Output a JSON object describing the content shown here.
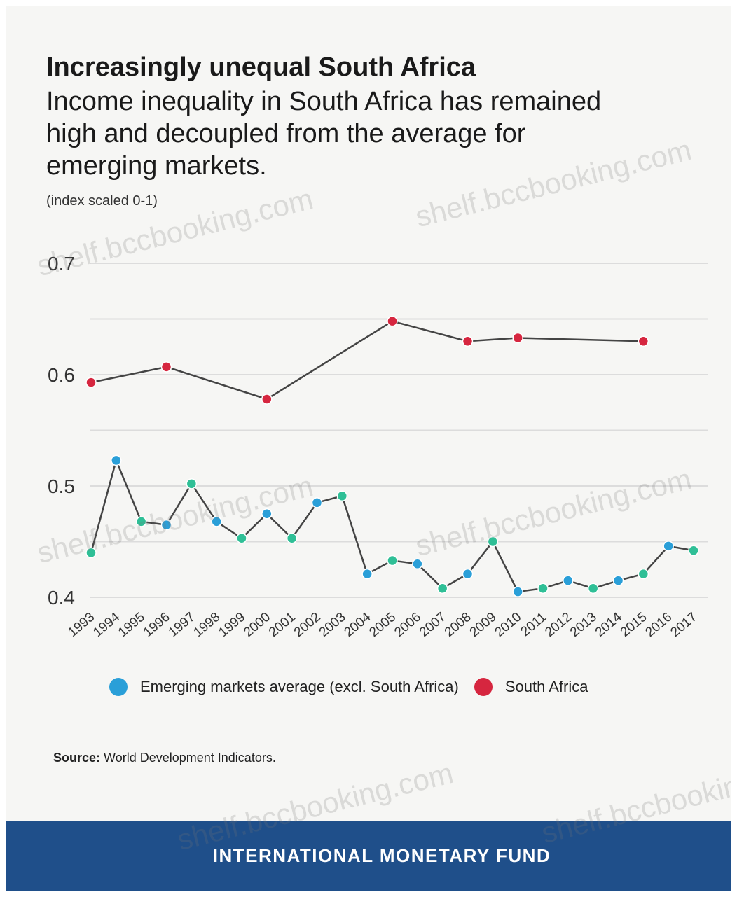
{
  "title": "Increasingly unequal South Africa",
  "subtitle": "Income inequality in South Africa has remained high and decoupled from the average for emerging markets.",
  "units": "(index scaled 0-1)",
  "legend": {
    "em": "Emerging markets average (excl. South Africa)",
    "sa": "South Africa"
  },
  "source": {
    "label": "Source:",
    "text": "World Development Indicators."
  },
  "footer": "INTERNATIONAL MONETARY FUND",
  "watermark": "shelf.bccbooking.com",
  "colors": {
    "em_marker": "#2a9fd8",
    "em_marker_alt": "#2fbf96",
    "sa_marker": "#d6263f",
    "line": "#444444",
    "footer_bg": "#1f4f8a"
  },
  "chart_data": {
    "type": "line",
    "x": [
      "1993",
      "1994",
      "1995",
      "1996",
      "1997",
      "1998",
      "1999",
      "2000",
      "2001",
      "2002",
      "2003",
      "2004",
      "2005",
      "2006",
      "2007",
      "2008",
      "2009",
      "2010",
      "2011",
      "2012",
      "2013",
      "2014",
      "2015",
      "2016",
      "2017"
    ],
    "ylim": [
      0.4,
      0.7
    ],
    "yticks": [
      "0.4",
      "0.5",
      "0.6",
      "0.7"
    ],
    "grid": true,
    "legend_position": "bottom",
    "series": [
      {
        "name": "Emerging markets average (excl. South Africa)",
        "values": [
          0.44,
          0.523,
          0.468,
          0.465,
          0.502,
          0.468,
          0.453,
          0.475,
          0.453,
          0.485,
          0.491,
          0.421,
          0.433,
          0.43,
          0.408,
          0.421,
          0.45,
          0.405,
          0.408,
          0.415,
          0.408,
          0.415,
          0.421,
          0.446,
          0.442
        ]
      },
      {
        "name": "South Africa",
        "x": [
          "1993",
          "1996",
          "2000",
          "2005",
          "2008",
          "2010",
          "2015"
        ],
        "values": [
          0.593,
          0.607,
          0.578,
          0.648,
          0.63,
          0.633,
          0.63
        ]
      }
    ]
  }
}
